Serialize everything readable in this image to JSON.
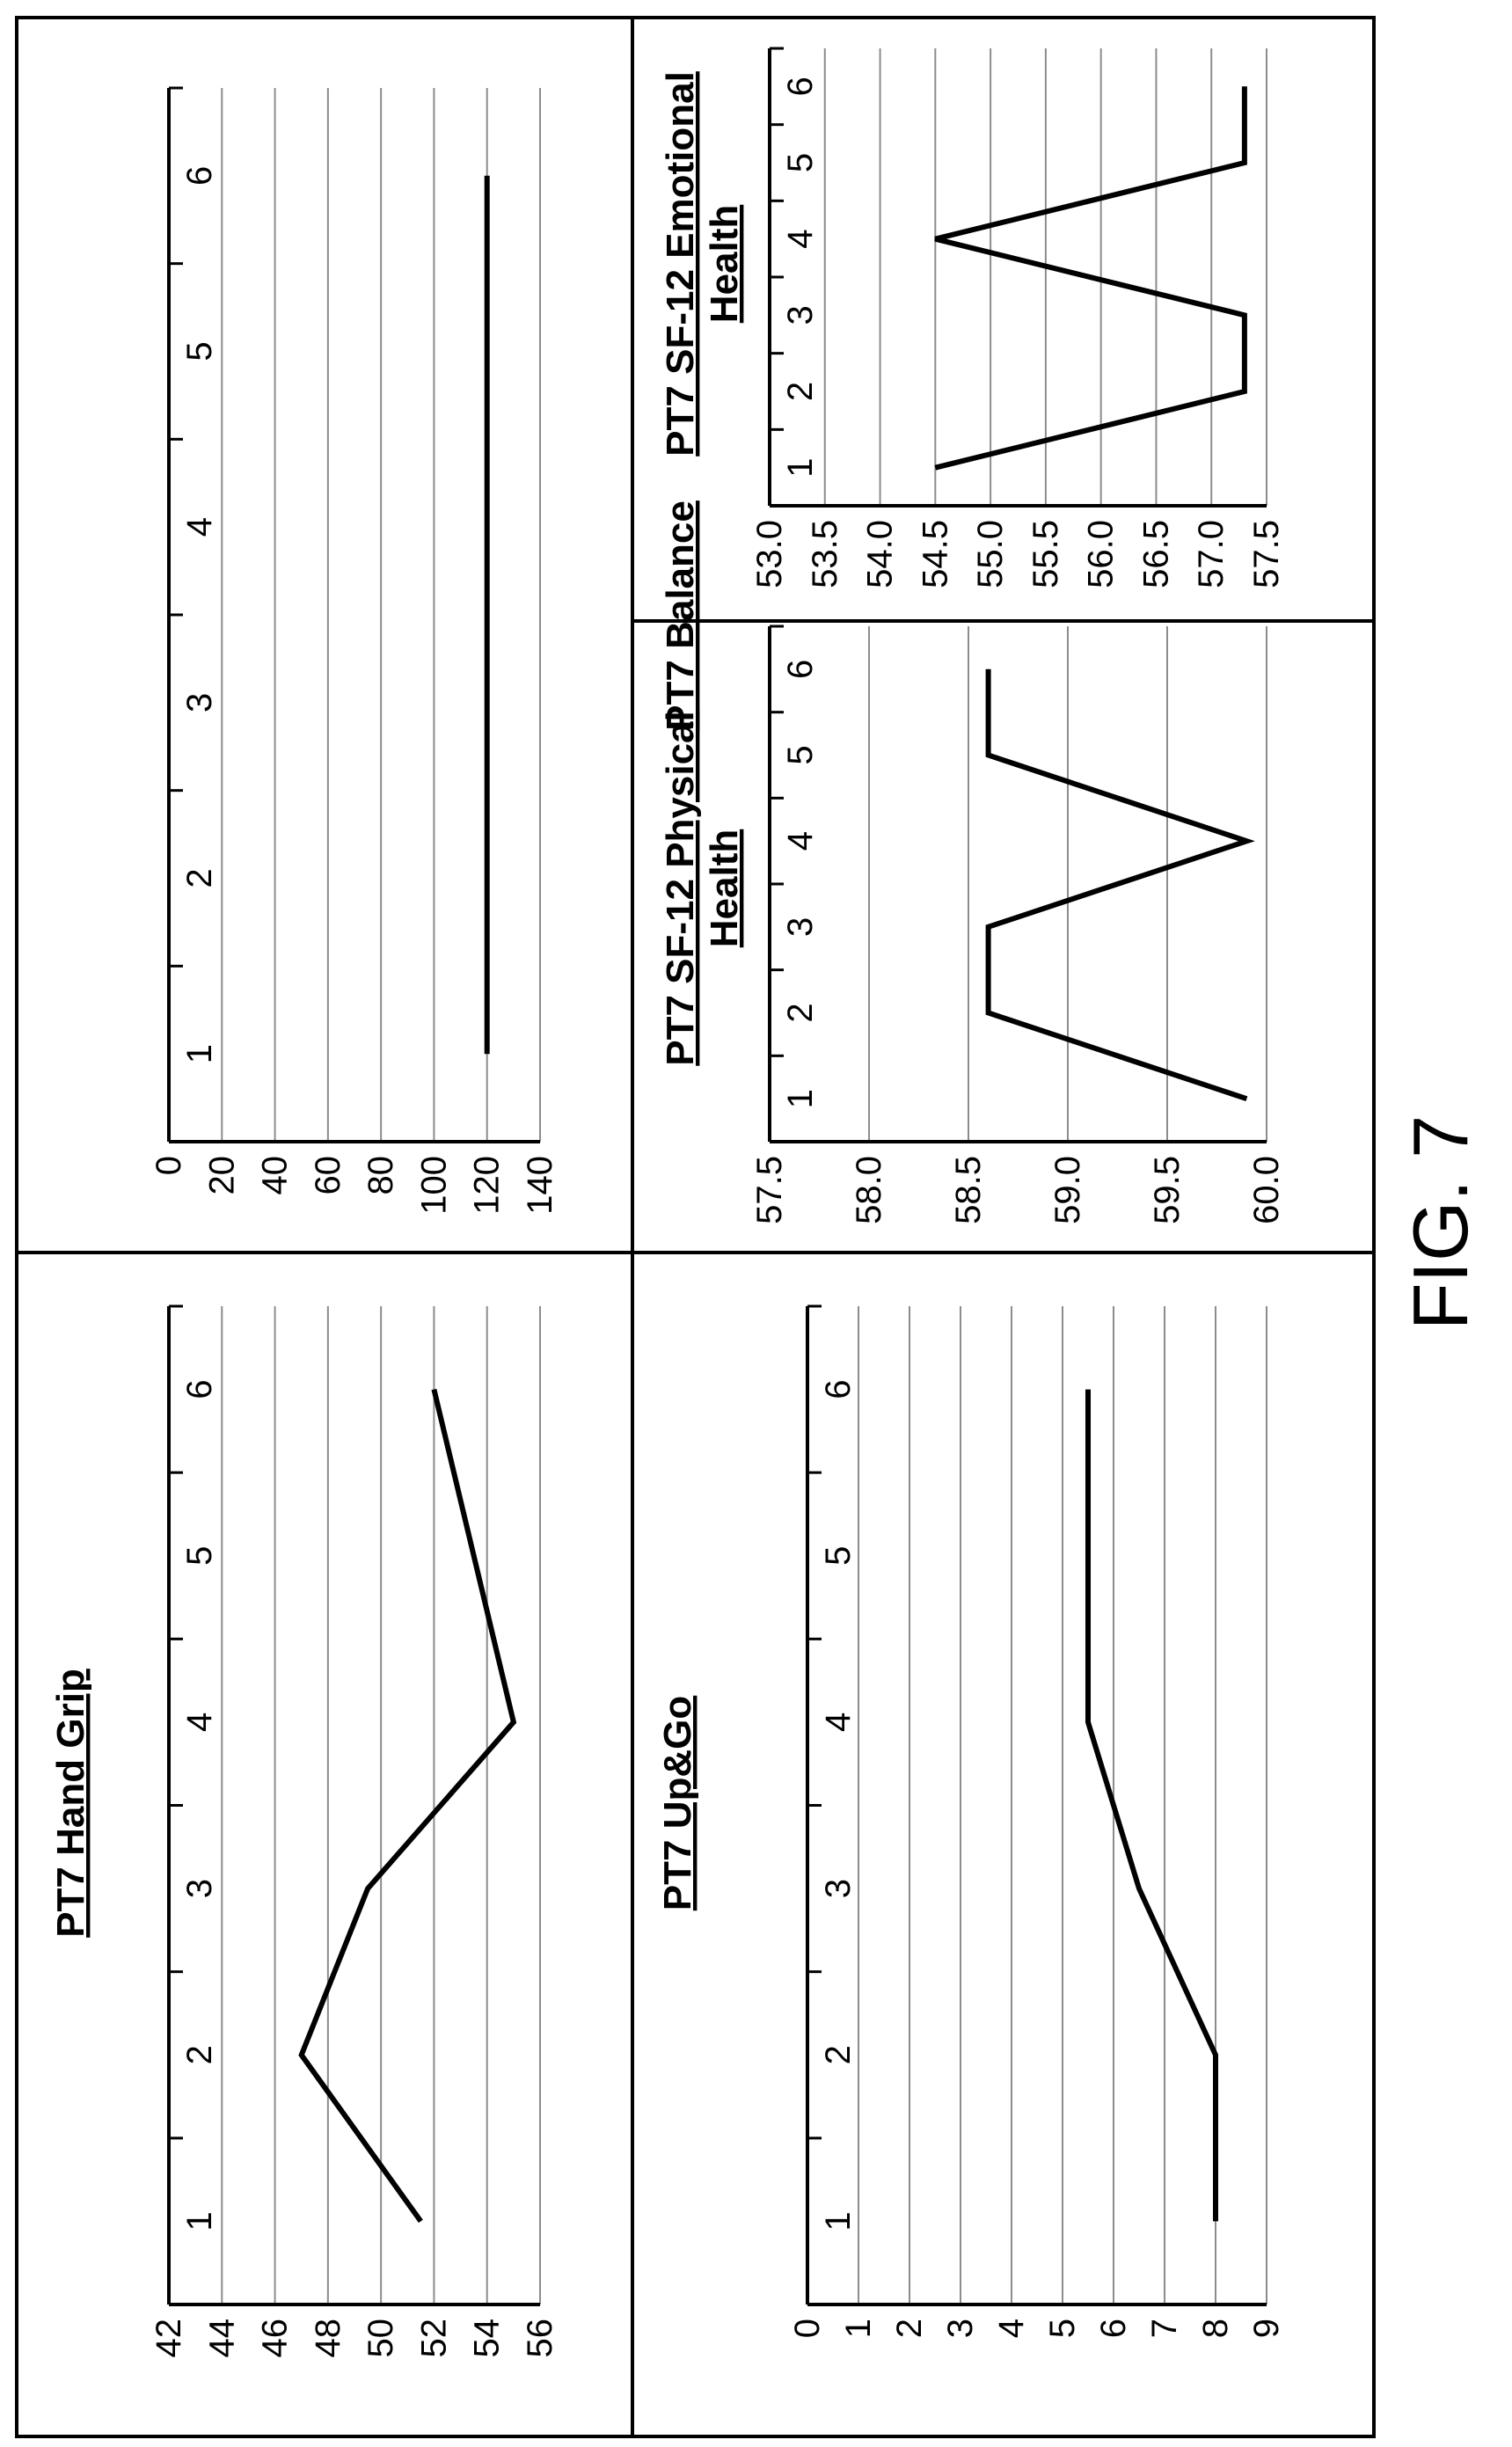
{
  "figure_label": "FIG. 7",
  "chart_data": [
    {
      "id": "hand_grip",
      "type": "line",
      "title": [
        "PT7 Hand Grip"
      ],
      "x": [
        1,
        2,
        3,
        4,
        5,
        6
      ],
      "xticks": [
        "1",
        "2",
        "3",
        "4",
        "5",
        "6"
      ],
      "xlim": [
        0.5,
        6.5
      ],
      "ylim": [
        42,
        56
      ],
      "yticks": [
        "56",
        "54",
        "52",
        "50",
        "48",
        "46",
        "44",
        "42"
      ],
      "series": [
        {
          "values": [
            51.5,
            47,
            49.5,
            55,
            null,
            52
          ]
        }
      ],
      "grid": true
    },
    {
      "id": "balance",
      "type": "line",
      "title": [
        "PT7 Balance"
      ],
      "x": [
        1,
        2,
        3,
        4,
        5,
        6
      ],
      "xticks": [
        "1",
        "2",
        "3",
        "4",
        "5",
        "6"
      ],
      "xlim": [
        0.5,
        6.5
      ],
      "ylim": [
        0,
        140
      ],
      "yticks": [
        "140",
        "120",
        "100",
        "80",
        "60",
        "40",
        "20",
        "0"
      ],
      "series": [
        {
          "values": [
            120,
            120,
            120,
            120,
            120,
            120
          ]
        }
      ],
      "grid": true
    },
    {
      "id": "up_and_go",
      "type": "line",
      "title": [
        "PT7 Up&Go"
      ],
      "x": [
        1,
        2,
        3,
        4,
        5,
        6
      ],
      "xticks": [
        "1",
        "2",
        "3",
        "4",
        "5",
        "6"
      ],
      "xlim": [
        0.5,
        6.5
      ],
      "ylim": [
        0,
        9
      ],
      "yticks": [
        "9",
        "8",
        "7",
        "6",
        "5",
        "4",
        "3",
        "2",
        "1",
        "0"
      ],
      "series": [
        {
          "values": [
            8,
            8,
            6.5,
            5.5,
            5.5,
            5.5
          ]
        }
      ],
      "grid": true
    },
    {
      "id": "sf12_physical",
      "type": "line",
      "title": [
        "PT7 SF-12 Physical",
        "Health"
      ],
      "x": [
        1,
        2,
        3,
        4,
        5,
        6
      ],
      "xticks": [
        "1",
        "2",
        "3",
        "4",
        "5",
        "6"
      ],
      "xlim": [
        0.5,
        6.5
      ],
      "ylim": [
        57.5,
        60.0
      ],
      "yticks": [
        "60.0",
        "59.5",
        "59.0",
        "58.5",
        "58.0",
        "57.5"
      ],
      "series": [
        {
          "values": [
            59.9,
            58.6,
            58.6,
            59.9,
            58.6,
            58.6
          ]
        }
      ],
      "grid": true
    },
    {
      "id": "sf12_emotional",
      "type": "line",
      "title": [
        "PT7 SF-12 Emotional",
        "Health"
      ],
      "x": [
        1,
        2,
        3,
        4,
        5,
        6
      ],
      "xticks": [
        "1",
        "2",
        "3",
        "4",
        "5",
        "6"
      ],
      "xlim": [
        0.5,
        6.5
      ],
      "ylim": [
        53.0,
        57.5
      ],
      "yticks": [
        "57.5",
        "57.0",
        "56.5",
        "56.0",
        "55.5",
        "55.0",
        "54.5",
        "54.0",
        "53.5",
        "53.0"
      ],
      "series": [
        {
          "values": [
            54.5,
            57.3,
            57.3,
            54.5,
            57.3,
            57.3
          ]
        }
      ],
      "grid": true
    }
  ]
}
